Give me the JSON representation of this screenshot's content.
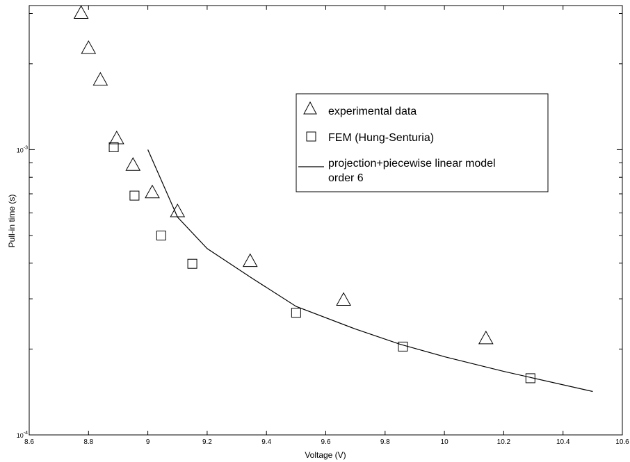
{
  "chart_data": {
    "type": "scatter",
    "title": "",
    "xlabel": "Voltage (V)",
    "ylabel": "Pull-in time (s)",
    "xlim": [
      8.6,
      10.6
    ],
    "ylim": [
      0.0001,
      0.0032
    ],
    "yscale": "log",
    "x_ticks": [
      8.6,
      8.8,
      9,
      9.2,
      9.4,
      9.6,
      9.8,
      10,
      10.2,
      10.4,
      10.6
    ],
    "x_tick_labels": [
      "8.6",
      "8.8",
      "9",
      "9.2",
      "9.4",
      "9.6",
      "9.8",
      "10",
      "10.2",
      "10.4",
      "10.6"
    ],
    "y_major_ticks": [
      0.0001,
      0.001
    ],
    "y_major_labels": [
      {
        "base": "10",
        "exp": "-4"
      },
      {
        "base": "10",
        "exp": "-3"
      }
    ],
    "y_minor_ticks": [
      0.0002,
      0.0003,
      0.0004,
      0.0005,
      0.0006,
      0.0007,
      0.0008,
      0.0009,
      0.002,
      0.003
    ],
    "grid": false,
    "legend_position": "upper-right",
    "series": [
      {
        "name": "experimental data",
        "marker": "triangle",
        "points": [
          [
            8.775,
            0.003
          ],
          [
            8.8,
            0.00226
          ],
          [
            8.84,
            0.00175
          ],
          [
            8.895,
            0.00109
          ],
          [
            8.95,
            0.00088
          ],
          [
            9.015,
            0.000705
          ],
          [
            9.1,
            0.000605
          ],
          [
            9.345,
            0.000405
          ],
          [
            9.66,
            0.000296
          ],
          [
            10.14,
            0.000217
          ]
        ]
      },
      {
        "name": "FEM (Hung-Senturia)",
        "marker": "square",
        "points": [
          [
            8.885,
            0.00102
          ],
          [
            8.955,
            0.00069
          ],
          [
            9.045,
            0.0005
          ],
          [
            9.15,
            0.000398
          ],
          [
            9.5,
            0.000268
          ],
          [
            9.86,
            0.000204
          ],
          [
            10.29,
            0.000158
          ]
        ]
      },
      {
        "name": "projection+piecewise linear model order 6",
        "marker": "line",
        "points": [
          [
            9.0,
            0.001
          ],
          [
            9.1,
            0.00058
          ],
          [
            9.2,
            0.00045
          ],
          [
            9.35,
            0.000355
          ],
          [
            9.5,
            0.000282
          ],
          [
            9.7,
            0.000235
          ],
          [
            9.85,
            0.000208
          ],
          [
            10.0,
            0.000188
          ],
          [
            10.2,
            0.000167
          ],
          [
            10.5,
            0.000142
          ]
        ]
      }
    ]
  }
}
